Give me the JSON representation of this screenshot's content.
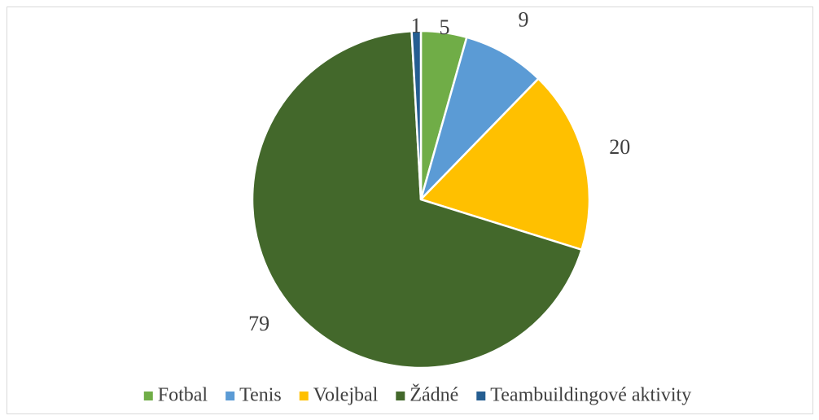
{
  "chart_data": {
    "type": "pie",
    "categories": [
      "Fotbal",
      "Tenis",
      "Volejbal",
      "Žádné",
      "Teambuildingové aktivity"
    ],
    "values": [
      5,
      9,
      20,
      79,
      1
    ],
    "colors": [
      "#70ad47",
      "#5b9bd5",
      "#ffc000",
      "#43682b",
      "#255e91"
    ],
    "legend": "bottom"
  }
}
